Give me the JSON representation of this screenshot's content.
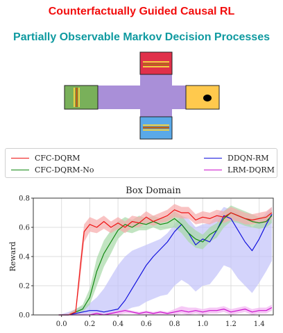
{
  "header": {
    "title_line1": "Counterfactually Guided Causal RL",
    "title_line2": "Partially Observable Markov Decision Processes"
  },
  "colors": {
    "title_red": "#f20d0d",
    "title_teal": "#0f9aa0",
    "corridor": "#a98fd8",
    "room_top": "#e0304a",
    "room_left": "#79b05a",
    "room_bottom": "#5aa9e8",
    "room_right": "#ffc94d",
    "stripe_brown": "#b5651d",
    "stripe_yellow": "#f0d040"
  },
  "chart_data": {
    "type": "line",
    "title": "Box Domain",
    "xlabel": "",
    "ylabel": "Reward",
    "xlim": [
      -0.2,
      1.5
    ],
    "ylim": [
      0,
      0.8
    ],
    "xticks": [
      "0.0",
      "0.2",
      "0.4",
      "0.6",
      "0.8",
      "1.0",
      "1.2",
      "1.4"
    ],
    "yticks": [
      "0.0",
      "0.2",
      "0.4",
      "0.6",
      "0.8"
    ],
    "grid": true,
    "legend_position": "above-plot",
    "series": [
      {
        "name": "CFC-DQRM",
        "color": "#ee1111",
        "band_color": "#f7aaaa",
        "x": [
          -0.02,
          0.05,
          0.1,
          0.13,
          0.16,
          0.2,
          0.25,
          0.3,
          0.35,
          0.4,
          0.45,
          0.5,
          0.55,
          0.6,
          0.65,
          0.7,
          0.75,
          0.8,
          0.85,
          0.9,
          0.95,
          1.0,
          1.05,
          1.1,
          1.15,
          1.2,
          1.25,
          1.3,
          1.35,
          1.4,
          1.45,
          1.49
        ],
        "y": [
          0.0,
          0.0,
          0.02,
          0.3,
          0.57,
          0.62,
          0.6,
          0.64,
          0.6,
          0.63,
          0.6,
          0.64,
          0.63,
          0.67,
          0.64,
          0.66,
          0.68,
          0.72,
          0.7,
          0.7,
          0.65,
          0.67,
          0.66,
          0.68,
          0.67,
          0.7,
          0.68,
          0.66,
          0.65,
          0.66,
          0.67,
          0.7
        ],
        "lower": [
          0.0,
          0.0,
          0.0,
          0.22,
          0.5,
          0.57,
          0.56,
          0.59,
          0.56,
          0.59,
          0.56,
          0.6,
          0.6,
          0.63,
          0.61,
          0.63,
          0.64,
          0.67,
          0.66,
          0.66,
          0.62,
          0.63,
          0.62,
          0.64,
          0.63,
          0.65,
          0.64,
          0.62,
          0.62,
          0.63,
          0.63,
          0.66
        ],
        "upper": [
          0.0,
          0.01,
          0.04,
          0.36,
          0.62,
          0.67,
          0.65,
          0.68,
          0.64,
          0.67,
          0.64,
          0.68,
          0.67,
          0.71,
          0.68,
          0.7,
          0.72,
          0.76,
          0.74,
          0.74,
          0.69,
          0.71,
          0.7,
          0.72,
          0.71,
          0.74,
          0.72,
          0.7,
          0.69,
          0.7,
          0.71,
          0.74
        ]
      },
      {
        "name": "CFC-DQRM-No",
        "color": "#118811",
        "band_color": "#a6d9a6",
        "x": [
          -0.02,
          0.05,
          0.1,
          0.15,
          0.2,
          0.25,
          0.3,
          0.35,
          0.4,
          0.45,
          0.5,
          0.55,
          0.6,
          0.65,
          0.7,
          0.75,
          0.8,
          0.85,
          0.9,
          0.95,
          1.0,
          1.05,
          1.1,
          1.15,
          1.2,
          1.25,
          1.3,
          1.35,
          1.4,
          1.45,
          1.49
        ],
        "y": [
          0.0,
          0.0,
          0.02,
          0.04,
          0.12,
          0.3,
          0.42,
          0.5,
          0.58,
          0.62,
          0.6,
          0.63,
          0.62,
          0.64,
          0.62,
          0.63,
          0.66,
          0.62,
          0.56,
          0.52,
          0.5,
          0.55,
          0.58,
          0.66,
          0.7,
          0.68,
          0.66,
          0.64,
          0.63,
          0.64,
          0.68
        ],
        "lower": [
          0.0,
          0.0,
          0.0,
          0.02,
          0.07,
          0.2,
          0.33,
          0.42,
          0.52,
          0.57,
          0.56,
          0.58,
          0.58,
          0.6,
          0.58,
          0.59,
          0.6,
          0.56,
          0.5,
          0.46,
          0.45,
          0.5,
          0.53,
          0.6,
          0.64,
          0.63,
          0.61,
          0.6,
          0.59,
          0.6,
          0.63
        ],
        "upper": [
          0.0,
          0.01,
          0.04,
          0.07,
          0.18,
          0.39,
          0.51,
          0.58,
          0.64,
          0.67,
          0.65,
          0.68,
          0.66,
          0.68,
          0.66,
          0.67,
          0.71,
          0.68,
          0.62,
          0.58,
          0.55,
          0.6,
          0.63,
          0.71,
          0.75,
          0.73,
          0.71,
          0.69,
          0.67,
          0.68,
          0.72
        ]
      },
      {
        "name": "DDQN-RM",
        "color": "#1111dd",
        "band_color": "#c2c2fa",
        "x": [
          -0.02,
          0.05,
          0.1,
          0.15,
          0.2,
          0.25,
          0.3,
          0.35,
          0.4,
          0.45,
          0.5,
          0.55,
          0.6,
          0.65,
          0.7,
          0.75,
          0.8,
          0.85,
          0.9,
          0.95,
          1.0,
          1.05,
          1.1,
          1.15,
          1.2,
          1.25,
          1.3,
          1.35,
          1.4,
          1.45,
          1.49
        ],
        "y": [
          0.0,
          0.0,
          0.01,
          0.02,
          0.03,
          0.03,
          0.02,
          0.03,
          0.04,
          0.1,
          0.18,
          0.26,
          0.34,
          0.4,
          0.45,
          0.5,
          0.57,
          0.62,
          0.56,
          0.48,
          0.52,
          0.5,
          0.58,
          0.68,
          0.66,
          0.58,
          0.5,
          0.44,
          0.52,
          0.62,
          0.69
        ],
        "lower": [
          0.0,
          0.0,
          0.0,
          0.0,
          0.01,
          0.01,
          0.0,
          0.01,
          0.02,
          0.03,
          0.05,
          0.06,
          0.09,
          0.11,
          0.13,
          0.14,
          0.2,
          0.24,
          0.21,
          0.16,
          0.2,
          0.21,
          0.27,
          0.34,
          0.32,
          0.25,
          0.2,
          0.15,
          0.22,
          0.3,
          0.37
        ],
        "upper": [
          0.0,
          0.02,
          0.04,
          0.06,
          0.08,
          0.12,
          0.18,
          0.26,
          0.34,
          0.4,
          0.44,
          0.46,
          0.48,
          0.5,
          0.52,
          0.56,
          0.62,
          0.68,
          0.66,
          0.6,
          0.62,
          0.63,
          0.68,
          0.74,
          0.72,
          0.7,
          0.66,
          0.6,
          0.64,
          0.7,
          0.74
        ]
      },
      {
        "name": "LRM-DQRM",
        "color": "#cc11cc",
        "band_color": "#f2b2f2",
        "x": [
          -0.02,
          0.05,
          0.1,
          0.15,
          0.2,
          0.25,
          0.3,
          0.35,
          0.4,
          0.45,
          0.5,
          0.55,
          0.6,
          0.65,
          0.7,
          0.75,
          0.8,
          0.85,
          0.9,
          0.95,
          1.0,
          1.05,
          1.1,
          1.15,
          1.2,
          1.25,
          1.3,
          1.35,
          1.4,
          1.45,
          1.49
        ],
        "y": [
          0.0,
          0.0,
          0.0,
          0.0,
          0.0,
          0.01,
          0.0,
          0.01,
          0.02,
          0.03,
          0.02,
          0.01,
          0.02,
          0.01,
          0.02,
          0.01,
          0.02,
          0.03,
          0.02,
          0.03,
          0.02,
          0.03,
          0.03,
          0.04,
          0.02,
          0.03,
          0.04,
          0.02,
          0.03,
          0.03,
          0.05
        ],
        "lower": [
          0.0,
          0.0,
          0.0,
          0.0,
          0.0,
          0.0,
          0.0,
          0.0,
          0.0,
          0.01,
          0.01,
          0.0,
          0.0,
          0.0,
          0.0,
          0.0,
          0.0,
          0.01,
          0.0,
          0.01,
          0.0,
          0.01,
          0.01,
          0.02,
          0.0,
          0.01,
          0.02,
          0.0,
          0.01,
          0.01,
          0.03
        ],
        "upper": [
          0.0,
          0.01,
          0.01,
          0.01,
          0.01,
          0.02,
          0.01,
          0.02,
          0.03,
          0.04,
          0.03,
          0.02,
          0.03,
          0.02,
          0.03,
          0.02,
          0.04,
          0.06,
          0.05,
          0.05,
          0.04,
          0.05,
          0.05,
          0.06,
          0.04,
          0.05,
          0.06,
          0.04,
          0.05,
          0.05,
          0.07
        ]
      }
    ]
  }
}
